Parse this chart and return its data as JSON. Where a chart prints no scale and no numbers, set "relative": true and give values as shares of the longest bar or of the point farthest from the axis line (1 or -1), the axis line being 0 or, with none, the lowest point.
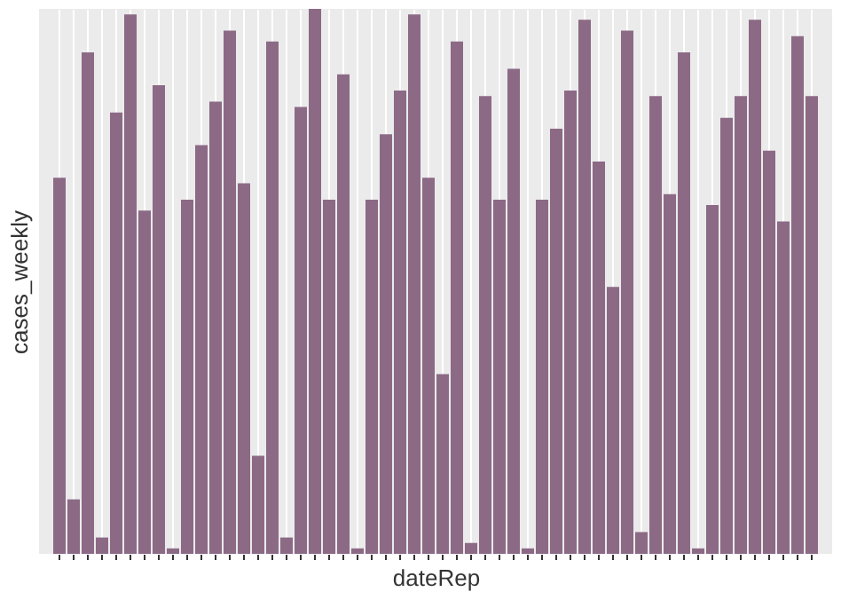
{
  "chart_data": {
    "type": "bar",
    "xlabel": "dateRep",
    "ylabel": "cases_weekly",
    "relative": true,
    "grid": "x",
    "legend": false,
    "tick_labels": false,
    "categories": [
      null,
      null,
      null,
      null,
      null,
      null,
      null,
      null,
      null,
      null,
      null,
      null,
      null,
      null,
      null,
      null,
      null,
      null,
      null,
      null,
      null,
      null,
      null,
      null,
      null,
      null,
      null,
      null,
      null,
      null,
      null,
      null,
      null,
      null,
      null,
      null,
      null,
      null,
      null,
      null,
      null,
      null,
      null,
      null,
      null,
      null,
      null,
      null,
      null,
      null,
      null,
      null,
      null,
      null
    ],
    "series": [
      {
        "color": "#8c6a86",
        "values": [
          0.69,
          0.1,
          0.92,
          0.03,
          0.81,
          0.99,
          0.63,
          0.86,
          0.01,
          0.65,
          0.75,
          0.83,
          0.96,
          0.68,
          0.18,
          0.94,
          0.03,
          0.82,
          1,
          0.65,
          0.88,
          0.01,
          0.65,
          0.77,
          0.85,
          0.99,
          0.69,
          0.33,
          0.94,
          0.02,
          0.84,
          0.65,
          0.89,
          0.01,
          0.65,
          0.78,
          0.85,
          0.98,
          0.72,
          0.49,
          0.96,
          0.04,
          0.84,
          0.66,
          0.92,
          0.01,
          0.64,
          0.8,
          0.84,
          0.98,
          0.74,
          0.61,
          0.95,
          0.84
        ]
      }
    ]
  }
}
